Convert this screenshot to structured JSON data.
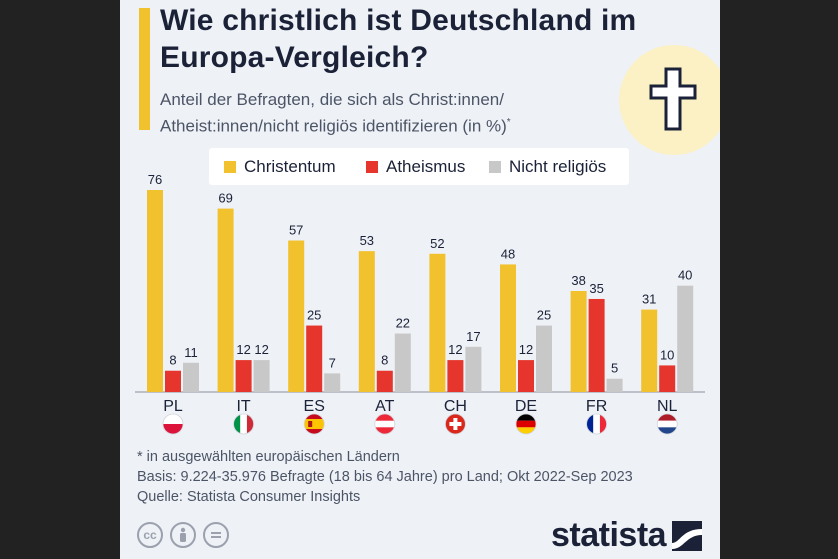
{
  "title": "Wie christlich ist Deutschland im Europa-Vergleich?",
  "subtitle": "Anteil der Befragten, die sich als Christ:innen/ Atheist:innen/nicht religiös identifizieren (in %)",
  "subtitle_marker": "*",
  "footnotes": {
    "asterisk": "* in ausgewählten europäischen Ländern",
    "basis": "Basis: 9.224-35.976 Befragte (18 bis 64 Jahre) pro Land; Okt 2022-Sep 2023",
    "source": "Quelle: Statista Consumer Insights"
  },
  "brand": "statista",
  "license_icons": [
    "cc",
    "by",
    "nd"
  ],
  "header_icon": "latin-cross-icon",
  "colors": {
    "christentum": "#f2c12e",
    "atheismus": "#e5352c",
    "nicht_religioes": "#c8c8c8",
    "accent": "#f2c12e",
    "text": "#1b2238"
  },
  "chart_data": {
    "type": "bar",
    "categories": [
      "PL",
      "IT",
      "ES",
      "AT",
      "CH",
      "DE",
      "FR",
      "NL"
    ],
    "flags": [
      "poland-flag",
      "italy-flag",
      "spain-flag",
      "austria-flag",
      "switzerland-flag",
      "germany-flag",
      "france-flag",
      "netherlands-flag"
    ],
    "series": [
      {
        "name": "Christentum",
        "values": [
          76,
          69,
          57,
          53,
          52,
          48,
          38,
          31
        ]
      },
      {
        "name": "Atheismus",
        "values": [
          8,
          12,
          25,
          8,
          12,
          12,
          35,
          10
        ]
      },
      {
        "name": "Nicht religiös",
        "values": [
          11,
          12,
          7,
          22,
          17,
          25,
          5,
          40
        ]
      }
    ],
    "ylim": [
      0,
      80
    ],
    "grid": false,
    "legend": "top",
    "xlabel": "",
    "ylabel": ""
  }
}
